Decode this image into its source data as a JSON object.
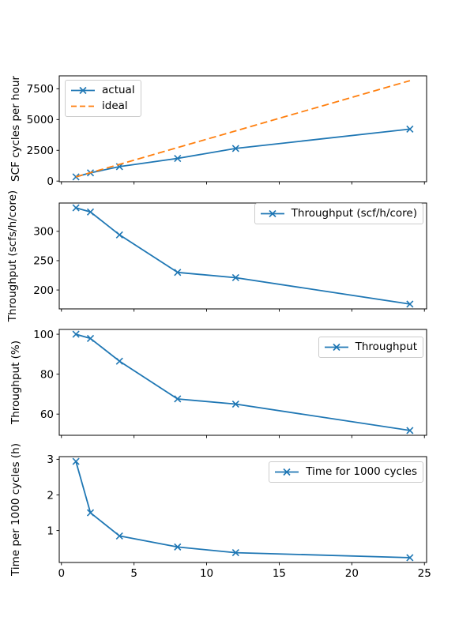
{
  "figure": {
    "background": "#ffffff"
  },
  "axis_style": {
    "spine_color": "#000000",
    "tick_color": "#000000",
    "text_color": "#000000",
    "legend_border_color": "#cccccc",
    "legend_background": "#ffffff"
  },
  "x_axis": {
    "ticks": [
      0,
      5,
      10,
      15,
      20,
      25
    ]
  },
  "chart_data": [
    {
      "type": "line",
      "ylabel": "SCF cycles per hour",
      "x": [
        1,
        2,
        4,
        8,
        12,
        24
      ],
      "yticks": [
        0,
        2500,
        5000,
        7500
      ],
      "xticks": [
        0,
        5,
        10,
        15,
        20,
        25
      ],
      "xticklabels_visible": false,
      "legend_position": "upper-left",
      "series": [
        {
          "name": "actual",
          "color": "#1f77b4",
          "line_style": "solid",
          "marker": "x",
          "values": [
            340,
            666,
            1176,
            1840,
            2652,
            4224
          ]
        },
        {
          "name": "ideal",
          "color": "#ff7f0e",
          "line_style": "dashed",
          "marker": null,
          "x": [
            1,
            24
          ],
          "values": [
            340,
            8160
          ]
        }
      ]
    },
    {
      "type": "line",
      "ylabel": "Throughput (scfs/h/core)",
      "x": [
        1,
        2,
        4,
        8,
        12,
        24
      ],
      "yticks": [
        200,
        250,
        300
      ],
      "xticks": [
        0,
        5,
        10,
        15,
        20,
        25
      ],
      "xticklabels_visible": false,
      "legend_position": "upper-right",
      "series": [
        {
          "name": "Throughput (scf/h/core)",
          "color": "#1f77b4",
          "line_style": "solid",
          "marker": "x",
          "values": [
            340,
            333,
            294,
            230,
            221,
            176
          ]
        }
      ]
    },
    {
      "type": "line",
      "ylabel": "Throughput (%)",
      "x": [
        1,
        2,
        4,
        8,
        12,
        24
      ],
      "yticks": [
        60,
        80,
        100
      ],
      "xticks": [
        0,
        5,
        10,
        15,
        20,
        25
      ],
      "xticklabels_visible": false,
      "legend_position": "upper-right",
      "series": [
        {
          "name": "Throughput",
          "color": "#1f77b4",
          "line_style": "solid",
          "marker": "x",
          "values": [
            100,
            97.9,
            86.5,
            67.6,
            65,
            51.8
          ]
        }
      ]
    },
    {
      "type": "line",
      "ylabel": "Time per 1000 cycles (h)",
      "x": [
        1,
        2,
        4,
        8,
        12,
        24
      ],
      "yticks": [
        1,
        2,
        3
      ],
      "xticks": [
        0,
        5,
        10,
        15,
        20,
        25
      ],
      "xticklabels_visible": true,
      "legend_position": "upper-right",
      "series": [
        {
          "name": "Time for 1000 cycles",
          "color": "#1f77b4",
          "line_style": "solid",
          "marker": "x",
          "values": [
            2.94,
            1.5,
            0.85,
            0.54,
            0.38,
            0.24
          ]
        }
      ]
    }
  ]
}
